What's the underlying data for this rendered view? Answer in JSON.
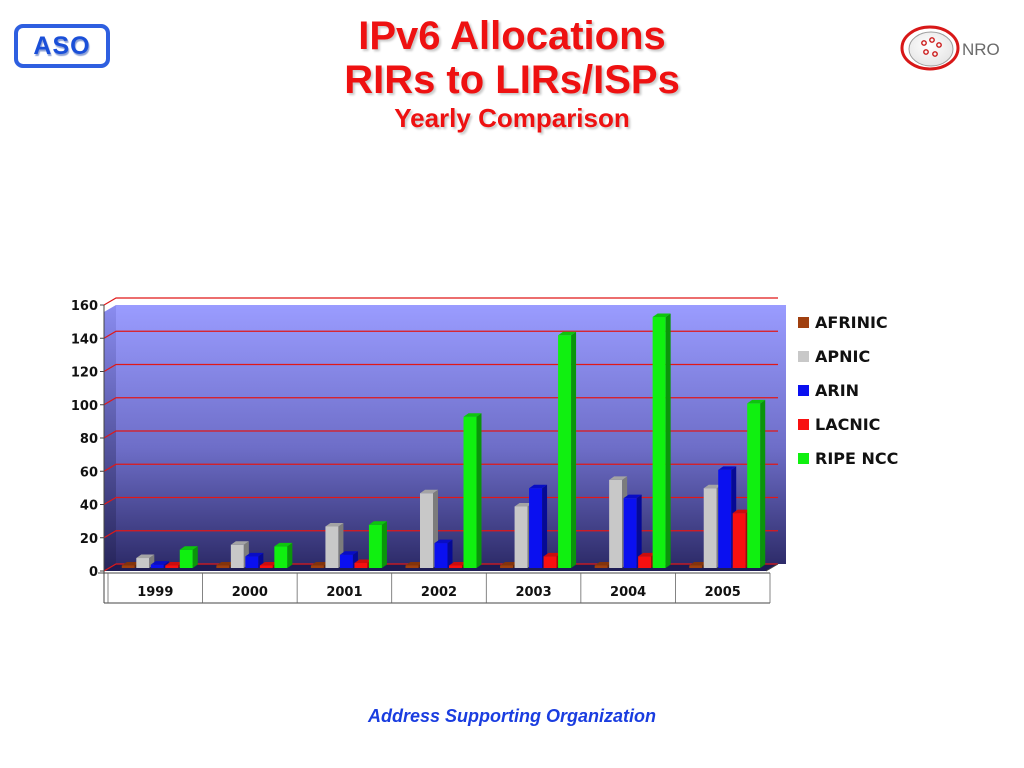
{
  "logos": {
    "left_text": "ASO",
    "right_text": "NRO"
  },
  "title": {
    "line1": "IPv6 Allocations",
    "line2": "RIRs to LIRs/ISPs",
    "line3": "Yearly Comparison"
  },
  "footer": "Address Supporting Organization",
  "chart_data": {
    "type": "bar",
    "categories": [
      "1999",
      "2000",
      "2001",
      "2002",
      "2003",
      "2004",
      "2005"
    ],
    "series": [
      {
        "name": "AFRINIC",
        "color": "#a0400f",
        "values": [
          0,
          0,
          0,
          0,
          0,
          1,
          1
        ]
      },
      {
        "name": "APNIC",
        "color": "#c8c8c8",
        "values": [
          6,
          14,
          25,
          45,
          37,
          53,
          48
        ]
      },
      {
        "name": "ARIN",
        "color": "#0a10f0",
        "values": [
          2,
          7,
          8,
          15,
          48,
          42,
          59
        ]
      },
      {
        "name": "LACNIC",
        "color": "#f81010",
        "values": [
          0,
          1,
          3,
          0,
          7,
          7,
          33
        ]
      },
      {
        "name": "RIPE NCC",
        "color": "#10f010",
        "values": [
          11,
          13,
          26,
          91,
          140,
          151,
          99
        ]
      }
    ],
    "ylim": [
      0,
      160
    ],
    "yticks": [
      "0",
      "20",
      "40",
      "60",
      "80",
      "100",
      "120",
      "140",
      "160"
    ],
    "title": "",
    "xlabel": "",
    "ylabel": "",
    "grid": true,
    "legend": "right"
  }
}
